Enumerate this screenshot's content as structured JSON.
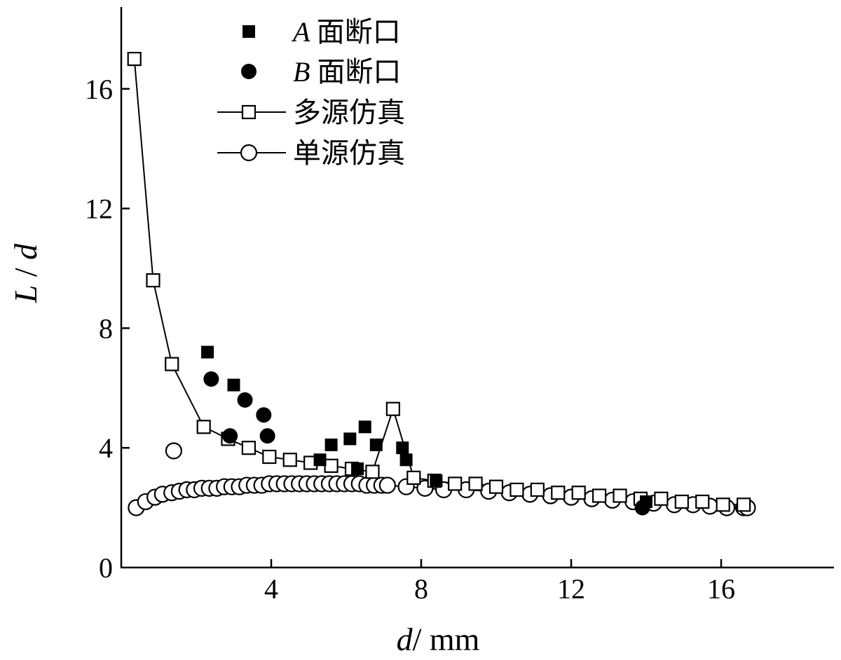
{
  "chart_data": {
    "type": "scatter",
    "title": "",
    "xlabel": "d/mm",
    "ylabel": "L/d",
    "xlim": [
      0,
      19
    ],
    "ylim": [
      0,
      18.5
    ],
    "xticks": [
      4,
      8,
      12,
      16
    ],
    "yticks": [
      0,
      4,
      8,
      12,
      16
    ],
    "grid": false,
    "legend_position": "top-center",
    "series": [
      {
        "name": "A面断口",
        "italic_prefix": "A",
        "text": "面断口",
        "marker": "filled-square",
        "line": false,
        "points": [
          [
            2.3,
            7.2
          ],
          [
            3.0,
            6.1
          ],
          [
            5.3,
            3.6
          ],
          [
            5.6,
            4.1
          ],
          [
            6.1,
            4.3
          ],
          [
            6.3,
            3.3
          ],
          [
            6.5,
            4.7
          ],
          [
            6.8,
            4.1
          ],
          [
            7.5,
            4.0
          ],
          [
            7.6,
            3.6
          ],
          [
            8.4,
            2.9
          ],
          [
            14.0,
            2.2
          ]
        ]
      },
      {
        "name": "B面断口",
        "italic_prefix": "B",
        "text": "面断口",
        "marker": "filled-circle",
        "line": false,
        "points": [
          [
            2.4,
            6.3
          ],
          [
            2.9,
            4.4
          ],
          [
            3.3,
            5.6
          ],
          [
            3.8,
            5.1
          ],
          [
            3.9,
            4.4
          ],
          [
            13.9,
            2.0
          ]
        ]
      },
      {
        "name": "多源仿真",
        "text": "多源仿真",
        "marker": "open-square",
        "line": true,
        "points": [
          [
            0.35,
            17.0
          ],
          [
            0.85,
            9.6
          ],
          [
            1.35,
            6.8
          ],
          [
            2.2,
            4.7
          ],
          [
            2.85,
            4.3
          ],
          [
            3.4,
            4.0
          ],
          [
            3.95,
            3.7
          ],
          [
            4.5,
            3.6
          ],
          [
            5.05,
            3.5
          ],
          [
            5.6,
            3.4
          ],
          [
            6.15,
            3.3
          ],
          [
            6.7,
            3.2
          ],
          [
            7.25,
            5.3
          ],
          [
            7.8,
            3.0
          ],
          [
            8.35,
            2.9
          ],
          [
            8.9,
            2.8
          ],
          [
            9.45,
            2.8
          ],
          [
            10.0,
            2.7
          ],
          [
            10.55,
            2.6
          ],
          [
            11.1,
            2.6
          ],
          [
            11.65,
            2.5
          ],
          [
            12.2,
            2.5
          ],
          [
            12.75,
            2.4
          ],
          [
            13.3,
            2.4
          ],
          [
            13.85,
            2.3
          ],
          [
            14.4,
            2.3
          ],
          [
            14.95,
            2.2
          ],
          [
            15.5,
            2.2
          ],
          [
            16.05,
            2.1
          ],
          [
            16.6,
            2.1
          ]
        ]
      },
      {
        "name": "单源仿真",
        "text": "单源仿真",
        "marker": "open-circle",
        "line": true,
        "points": [
          [
            0.4,
            2.0
          ],
          [
            0.65,
            2.2
          ],
          [
            0.9,
            2.35
          ],
          [
            1.1,
            2.45
          ],
          [
            1.35,
            2.5
          ],
          [
            1.55,
            2.55
          ],
          [
            1.75,
            2.6
          ],
          [
            1.95,
            2.6
          ],
          [
            2.15,
            2.65
          ],
          [
            2.35,
            2.65
          ],
          [
            2.55,
            2.65
          ],
          [
            2.75,
            2.7
          ],
          [
            2.95,
            2.7
          ],
          [
            3.15,
            2.7
          ],
          [
            3.35,
            2.75
          ],
          [
            3.55,
            2.75
          ],
          [
            3.75,
            2.75
          ],
          [
            3.95,
            2.8
          ],
          [
            4.15,
            2.8
          ],
          [
            4.35,
            2.8
          ],
          [
            4.55,
            2.8
          ],
          [
            4.75,
            2.8
          ],
          [
            4.95,
            2.8
          ],
          [
            5.15,
            2.8
          ],
          [
            5.35,
            2.8
          ],
          [
            5.55,
            2.8
          ],
          [
            5.75,
            2.8
          ],
          [
            5.95,
            2.8
          ],
          [
            6.15,
            2.8
          ],
          [
            6.35,
            2.8
          ],
          [
            6.55,
            2.75
          ],
          [
            6.75,
            2.75
          ],
          [
            6.95,
            2.75
          ],
          [
            7.1,
            2.75
          ],
          [
            7.6,
            2.7
          ],
          [
            8.1,
            2.65
          ],
          [
            8.6,
            2.6
          ],
          [
            9.2,
            2.6
          ],
          [
            9.8,
            2.55
          ],
          [
            10.35,
            2.5
          ],
          [
            10.9,
            2.45
          ],
          [
            11.45,
            2.4
          ],
          [
            12.0,
            2.35
          ],
          [
            12.55,
            2.3
          ],
          [
            13.1,
            2.25
          ],
          [
            13.65,
            2.2
          ],
          [
            14.2,
            2.15
          ],
          [
            14.75,
            2.1
          ],
          [
            15.25,
            2.1
          ],
          [
            15.7,
            2.05
          ],
          [
            16.15,
            2.0
          ],
          [
            16.6,
            2.0
          ],
          [
            16.7,
            2.0
          ]
        ]
      }
    ],
    "annotations": [
      {
        "kind": "open-circle-outlier",
        "x": 1.4,
        "y": 3.9
      }
    ]
  }
}
